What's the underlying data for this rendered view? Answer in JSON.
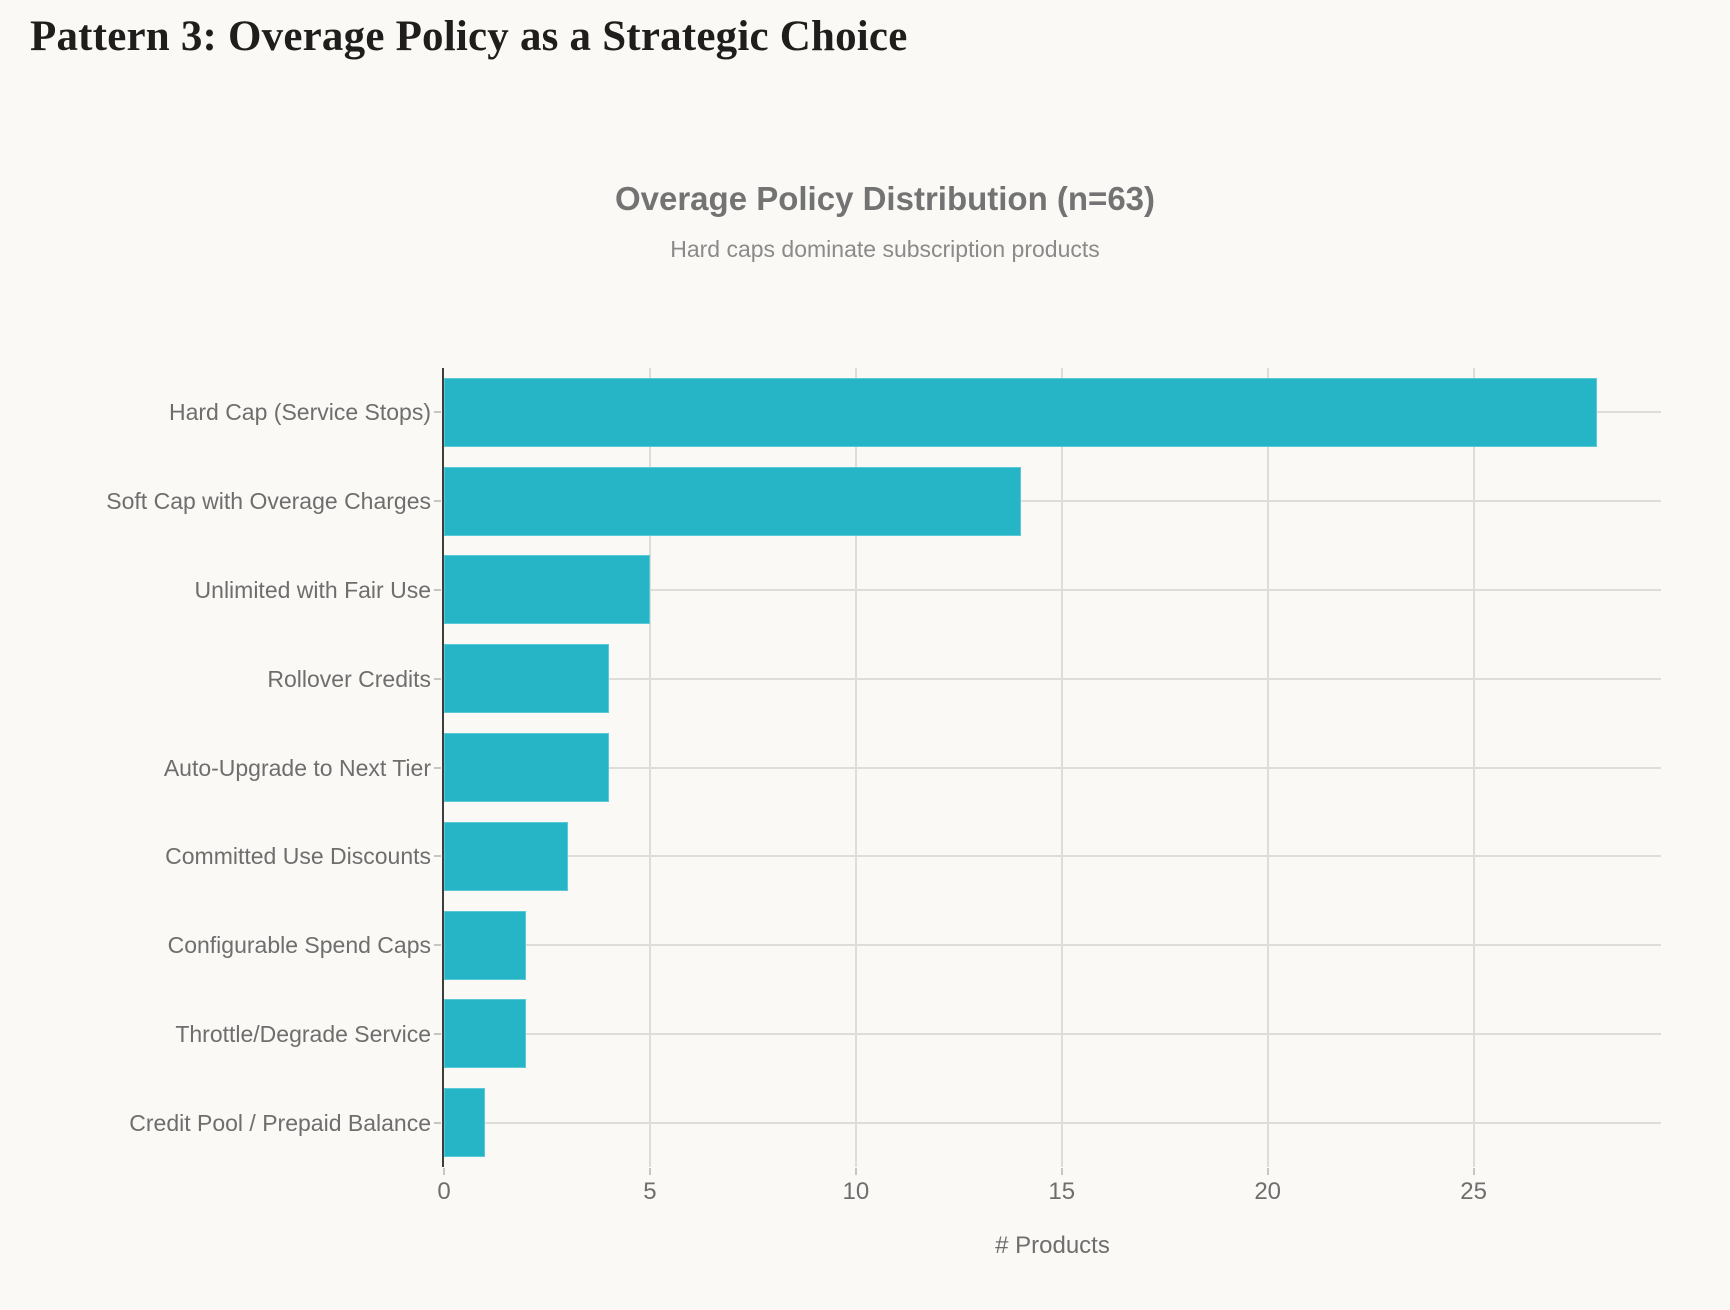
{
  "page": {
    "heading": "Pattern 3: Overage Policy as a Strategic Choice"
  },
  "chart_data": {
    "type": "bar",
    "orientation": "horizontal",
    "title": "Overage Policy Distribution (n=63)",
    "subtitle": "Hard caps dominate subscription products",
    "categories": [
      "Hard Cap (Service Stops)",
      "Soft Cap with Overage Charges",
      "Unlimited with Fair Use",
      "Rollover Credits",
      "Auto-Upgrade to Next Tier",
      "Committed Use Discounts",
      "Configurable Spend Caps",
      "Throttle/Degrade Service",
      "Credit Pool / Prepaid Balance"
    ],
    "values": [
      28,
      14,
      5,
      4,
      4,
      3,
      2,
      2,
      1
    ],
    "total_n": 63,
    "xlabel": "# Products",
    "xticks": [
      0,
      5,
      10,
      15,
      20,
      25
    ],
    "xlim": [
      0,
      29.55
    ],
    "grid": true,
    "legend": false,
    "colors": {
      "background": "#faf9f5",
      "bar": "#26b5c7",
      "grid": "#deddd9",
      "axis_line": "#3d3d3d",
      "tick_mark": "#c7c6c2",
      "heading_text": "#1f1e1c",
      "title_text": "#737373",
      "subtitle_text": "#8a8a8a",
      "label_text": "#6e6e6e"
    }
  }
}
